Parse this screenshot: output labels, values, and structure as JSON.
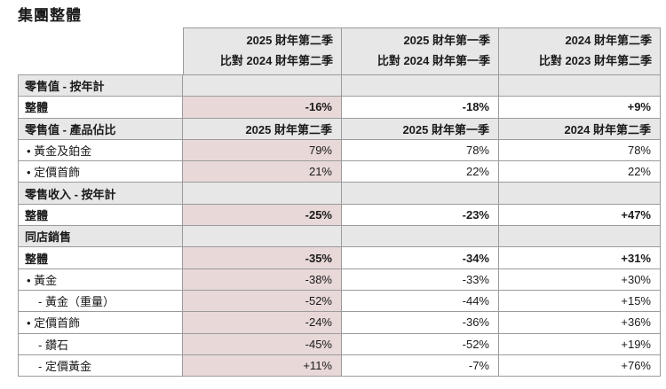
{
  "title": "集團整體",
  "colors": {
    "highlight_column_pink": "#e8d8d8",
    "section_row_gray": "#e7e7e7",
    "border_gray": "#9b9b9b",
    "text": "#1a1a1a"
  },
  "header": {
    "columns": [
      {
        "line1": "2025 財年第二季",
        "line2": "比對 2024 財年第二季"
      },
      {
        "line1": "2025 財年第一季",
        "line2": "比對 2024 財年第一季"
      },
      {
        "line1": "2024 財年第二季",
        "line2": "比對 2023 財年第二季"
      }
    ]
  },
  "rows": [
    {
      "type": "section",
      "label": "零售值 - 按年計",
      "values": [
        "",
        "",
        ""
      ]
    },
    {
      "type": "total",
      "label": "整體",
      "values": [
        "-16%",
        "-18%",
        "+9%"
      ]
    },
    {
      "type": "section",
      "label": "零售值 - 產品佔比",
      "values": [
        "2025 財年第二季",
        "2025 財年第一季",
        "2024 財年第二季"
      ]
    },
    {
      "type": "item",
      "label": "• 黃金及鉑金",
      "values": [
        "79%",
        "78%",
        "78%"
      ]
    },
    {
      "type": "item",
      "label": "• 定價首飾",
      "values": [
        "21%",
        "22%",
        "22%"
      ]
    },
    {
      "type": "section",
      "label": "零售收入 - 按年計",
      "values": [
        "",
        "",
        ""
      ]
    },
    {
      "type": "total",
      "label": "整體",
      "values": [
        "-25%",
        "-23%",
        "+47%"
      ]
    },
    {
      "type": "section",
      "label": "同店銷售",
      "values": [
        "",
        "",
        ""
      ]
    },
    {
      "type": "total",
      "label": "整體",
      "values": [
        "-35%",
        "-34%",
        "+31%"
      ]
    },
    {
      "type": "item",
      "label": "• 黃金",
      "values": [
        "-38%",
        "-33%",
        "+30%"
      ]
    },
    {
      "type": "subitem",
      "label": "- 黃金（重量）",
      "values": [
        "-52%",
        "-44%",
        "+15%"
      ]
    },
    {
      "type": "item",
      "label": "• 定價首飾",
      "values": [
        "-24%",
        "-36%",
        "+36%"
      ]
    },
    {
      "type": "subitem",
      "label": "- 鑽石",
      "values": [
        "-45%",
        "-52%",
        "+19%"
      ]
    },
    {
      "type": "subitem",
      "label": "- 定價黃金",
      "values": [
        "+11%",
        "-7%",
        "+76%"
      ]
    }
  ]
}
